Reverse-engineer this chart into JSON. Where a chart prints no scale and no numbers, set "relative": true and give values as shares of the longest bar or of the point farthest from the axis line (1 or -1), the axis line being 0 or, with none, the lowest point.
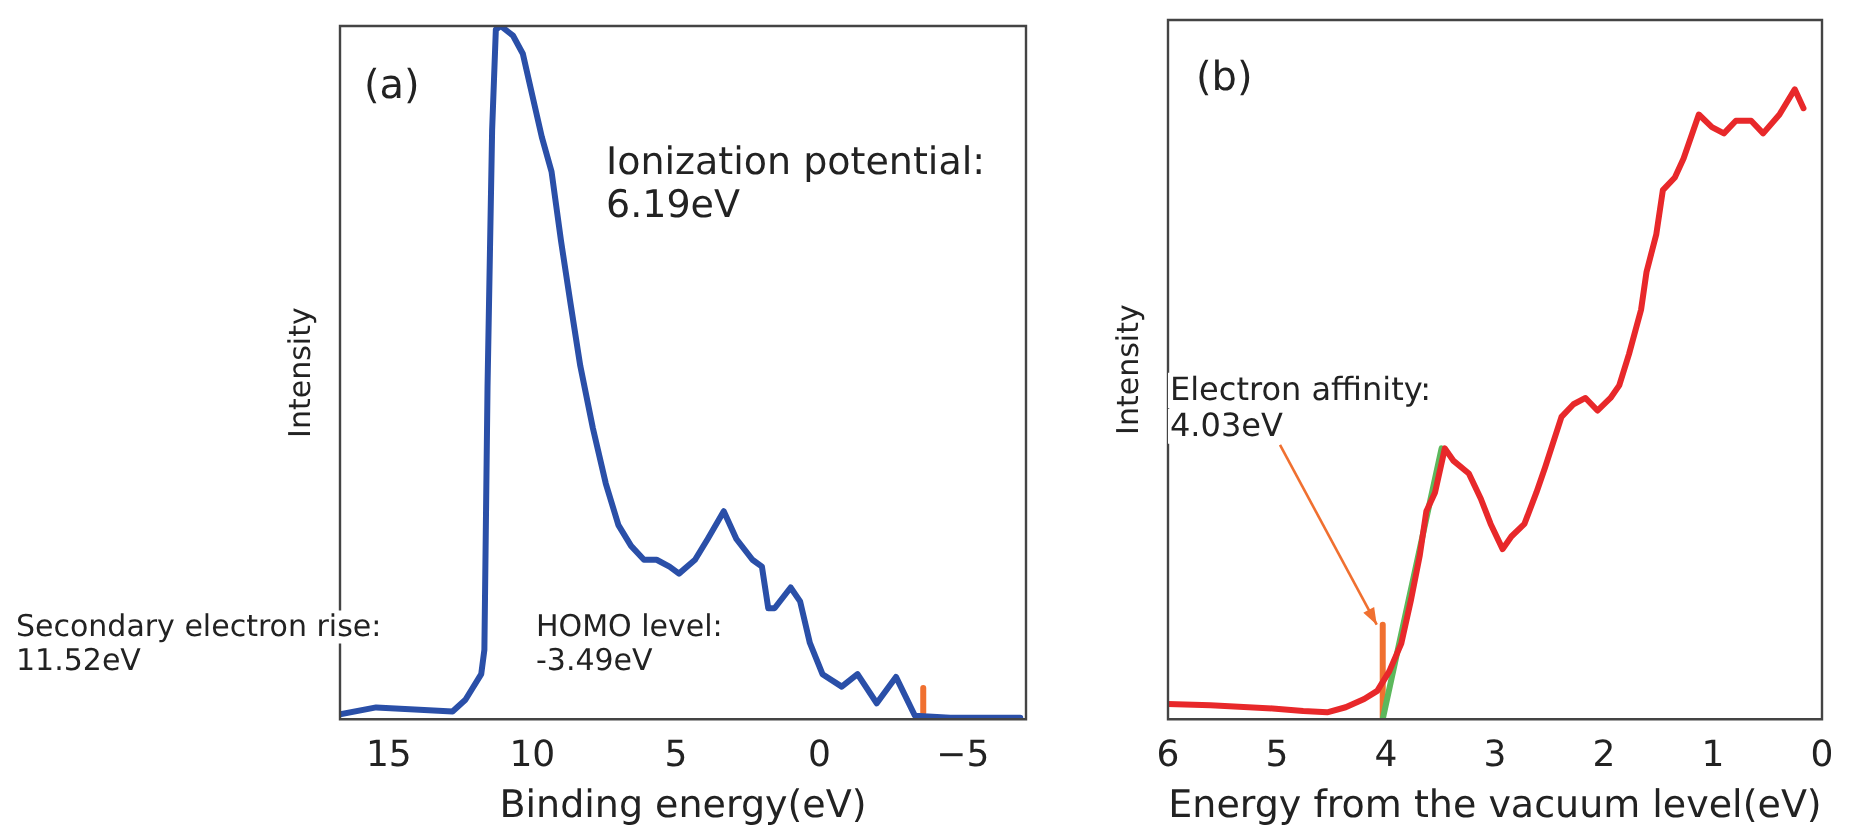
{
  "chart_data": [
    {
      "type": "line",
      "title": "(a)",
      "xlabel": "Binding energy(eV)",
      "ylabel": "Intensity",
      "relative": true,
      "legend": false,
      "grid": false,
      "xlim": [
        16.7,
        -7.2
      ],
      "xticks": [
        15,
        10,
        5,
        0,
        -5
      ],
      "annotations": [
        "Ionization potential:\n6.19eV",
        "Secondary electron rise:\n11.52eV",
        "HOMO level:\n-3.49eV"
      ],
      "series": [
        {
          "color": "#2a4fa8",
          "x": [
            16.7,
            15.44,
            14.1,
            12.78,
            12.33,
            11.78,
            11.67,
            11.56,
            11.4,
            11.27,
            11.1,
            10.67,
            10.33,
            10.0,
            9.67,
            9.33,
            9.0,
            8.67,
            8.33,
            7.89,
            7.44,
            7.0,
            6.56,
            6.11,
            5.67,
            5.22,
            4.89,
            4.33,
            3.89,
            3.33,
            2.89,
            2.33,
            2.0,
            1.78,
            1.56,
            1.0,
            0.67,
            0.33,
            -0.11,
            -0.78,
            -1.33,
            -2.0,
            -2.67,
            -3.33,
            -4.56,
            -7.0
          ],
          "values": [
            0.007,
            0.017,
            0.014,
            0.011,
            0.028,
            0.065,
            0.1,
            0.48,
            0.85,
            0.995,
            1.0,
            0.986,
            0.96,
            0.9,
            0.84,
            0.79,
            0.69,
            0.6,
            0.51,
            0.42,
            0.34,
            0.28,
            0.25,
            0.23,
            0.23,
            0.22,
            0.21,
            0.23,
            0.26,
            0.3,
            0.26,
            0.23,
            0.22,
            0.16,
            0.16,
            0.19,
            0.17,
            0.11,
            0.065,
            0.047,
            0.065,
            0.023,
            0.061,
            0.005,
            0.002,
            0.002
          ]
        },
        {
          "color": "#f07030",
          "x": [
            -3.62,
            -3.62
          ],
          "values": [
            0.01,
            0.045
          ]
        }
      ]
    },
    {
      "type": "line",
      "title": "(b)",
      "xlabel": "Energy from the vacuum level(eV)",
      "ylabel": "Intensity",
      "relative": true,
      "legend": false,
      "grid": false,
      "xlim": [
        6,
        0
      ],
      "xticks": [
        6,
        5,
        4,
        3,
        2,
        1,
        0
      ],
      "annotations": [
        {
          "text": "Electron affinity:\n4.03eV",
          "x": 4.03,
          "y": 0.15
        }
      ],
      "series": [
        {
          "color": "#e8282a",
          "x": [
            6,
            5.61,
            5.04,
            4.76,
            4.54,
            4.37,
            4.2,
            4.08,
            3.97,
            3.86,
            3.77,
            3.69,
            3.63,
            3.55,
            3.46,
            3.38,
            3.24,
            3.13,
            3.04,
            2.93,
            2.85,
            2.73,
            2.62,
            2.54,
            2.39,
            2.28,
            2.17,
            2.06,
            1.94,
            1.86,
            1.77,
            1.66,
            1.61,
            1.52,
            1.46,
            1.35,
            1.27,
            1.13,
            1.01,
            0.9,
            0.79,
            0.65,
            0.54,
            0.39,
            0.25,
            0.17
          ],
          "values": [
            0.024,
            0.022,
            0.017,
            0.013,
            0.011,
            0.019,
            0.032,
            0.045,
            0.076,
            0.12,
            0.19,
            0.26,
            0.33,
            0.36,
            0.43,
            0.41,
            0.39,
            0.35,
            0.31,
            0.27,
            0.29,
            0.31,
            0.36,
            0.4,
            0.48,
            0.5,
            0.51,
            0.49,
            0.51,
            0.53,
            0.58,
            0.65,
            0.71,
            0.77,
            0.84,
            0.86,
            0.89,
            0.96,
            0.94,
            0.93,
            0.95,
            0.95,
            0.93,
            0.96,
            1.0,
            0.97
          ]
        },
        {
          "type": "line",
          "color": "#5cb85c",
          "x": [
            4.03,
            3.49
          ],
          "values": [
            0,
            0.43
          ]
        },
        {
          "color": "#f07030",
          "x": [
            4.03,
            4.03
          ],
          "values": [
            0,
            0.15
          ]
        }
      ]
    }
  ]
}
